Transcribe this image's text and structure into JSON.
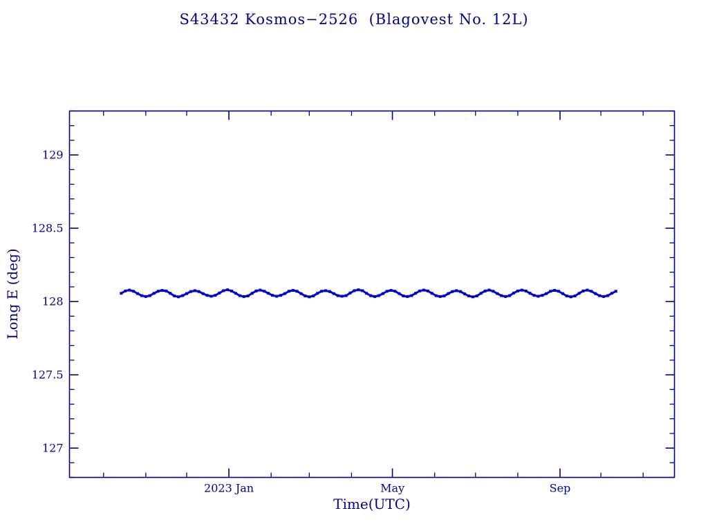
{
  "page": {
    "background": "#ffffff"
  },
  "colors": {
    "axis": "#00008B",
    "text": "#00008B",
    "data": "#0000CD"
  },
  "chart_data": {
    "type": "scatter",
    "title": "S43432 Kosmos−2526  (Blagovest No. 12L)",
    "xlabel": "Time(UTC)",
    "ylabel": "Long E (deg)",
    "legend": "none",
    "grid": false,
    "x_axis": {
      "domain_days": [
        0,
        444
      ],
      "major_ticks": [
        {
          "day": 117,
          "label": "2023 Jan"
        },
        {
          "day": 237,
          "label": "May"
        },
        {
          "day": 360,
          "label": "Sep"
        }
      ],
      "minor_tick_days": [
        25,
        56,
        86,
        148,
        176,
        207,
        268,
        298,
        329,
        390,
        421
      ]
    },
    "y_axis": {
      "ylim": [
        126.8,
        129.3
      ],
      "major_ticks": [
        {
          "value": 127,
          "label": "127"
        },
        {
          "value": 127.5,
          "label": "127.5"
        },
        {
          "value": 128,
          "label": "128"
        },
        {
          "value": 128.5,
          "label": "128.5"
        },
        {
          "value": 129,
          "label": "129"
        }
      ],
      "minor_step": 0.1
    },
    "series": [
      {
        "name": "longitude-east",
        "marker": "square",
        "color": "#0000CD",
        "x_days": [
          38,
          41,
          44,
          47,
          50,
          53,
          56,
          59,
          62,
          65,
          68,
          71,
          74,
          77,
          80,
          83,
          86,
          89,
          92,
          95,
          98,
          101,
          104,
          107,
          110,
          113,
          116,
          119,
          122,
          125,
          128,
          131,
          134,
          137,
          140,
          143,
          146,
          149,
          152,
          155,
          158,
          161,
          164,
          167,
          170,
          173,
          176,
          179,
          182,
          185,
          188,
          191,
          194,
          197,
          200,
          203,
          206,
          209,
          212,
          215,
          218,
          221,
          224,
          227,
          230,
          233,
          236,
          239,
          242,
          245,
          248,
          251,
          254,
          257,
          260,
          263,
          266,
          269,
          272,
          275,
          278,
          281,
          284,
          287,
          290,
          293,
          296,
          299,
          302,
          305,
          308,
          311,
          314,
          317,
          320,
          323,
          326,
          329,
          332,
          335,
          338,
          341,
          344,
          347,
          350,
          353,
          356,
          359,
          362,
          365,
          368,
          371,
          374,
          377,
          380,
          383,
          386,
          389,
          392,
          395,
          398,
          401
        ],
        "y_deg": [
          128.056,
          128.072,
          128.078,
          128.07,
          128.054,
          128.04,
          128.034,
          128.04,
          128.056,
          128.07,
          128.076,
          128.072,
          128.056,
          128.038,
          128.032,
          128.04,
          128.054,
          128.068,
          128.074,
          128.068,
          128.054,
          128.042,
          128.036,
          128.042,
          128.058,
          128.074,
          128.08,
          128.072,
          128.056,
          128.04,
          128.034,
          128.038,
          128.056,
          128.072,
          128.078,
          128.07,
          128.056,
          128.042,
          128.036,
          128.042,
          128.054,
          128.07,
          128.076,
          128.07,
          128.054,
          128.038,
          128.032,
          128.038,
          128.056,
          128.07,
          128.074,
          128.068,
          128.054,
          128.04,
          128.036,
          128.04,
          128.058,
          128.074,
          128.08,
          128.074,
          128.056,
          128.04,
          128.034,
          128.04,
          128.054,
          128.07,
          128.076,
          128.07,
          128.054,
          128.038,
          128.034,
          128.04,
          128.056,
          128.072,
          128.078,
          128.072,
          128.056,
          128.04,
          128.034,
          128.038,
          128.054,
          128.068,
          128.074,
          128.068,
          128.052,
          128.038,
          128.032,
          128.038,
          128.056,
          128.072,
          128.078,
          128.07,
          128.054,
          128.04,
          128.034,
          128.04,
          128.058,
          128.072,
          128.078,
          128.072,
          128.056,
          128.042,
          128.036,
          128.042,
          128.054,
          128.07,
          128.076,
          128.07,
          128.054,
          128.038,
          128.032,
          128.038,
          128.056,
          128.072,
          128.078,
          128.07,
          128.054,
          128.04,
          128.034,
          128.04,
          128.056,
          128.07
        ]
      }
    ]
  }
}
